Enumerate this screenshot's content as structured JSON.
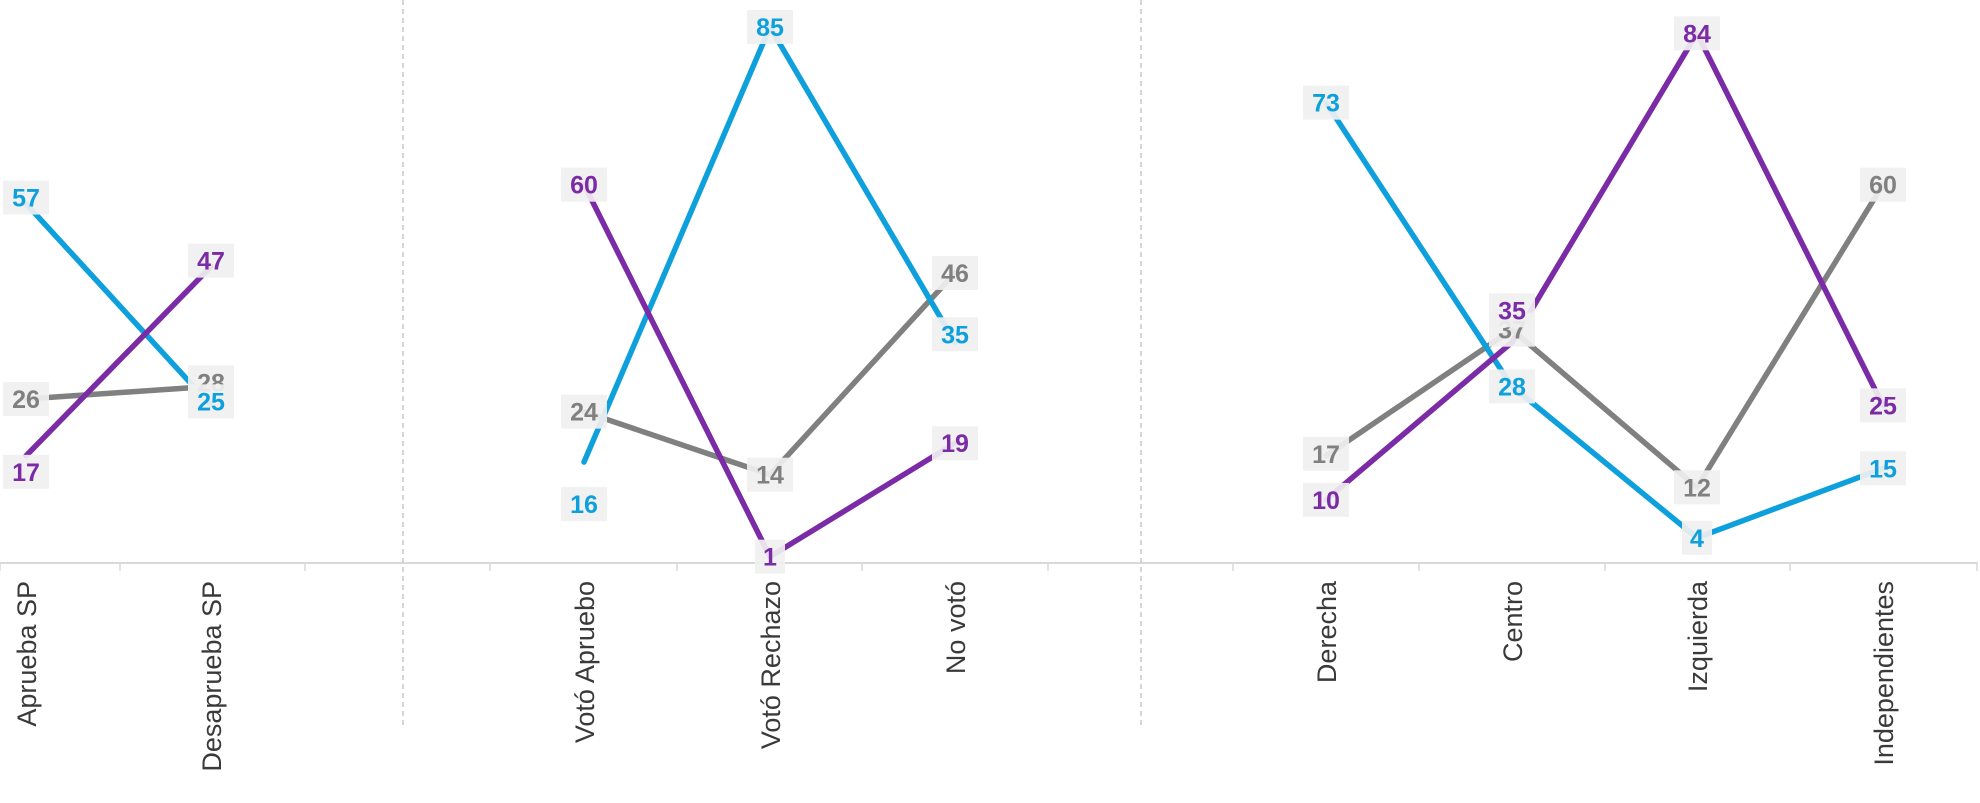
{
  "colors": {
    "blue": "#0ea0dc",
    "purple": "#7b2ba6",
    "gray": "#808080",
    "axis": "#d9d9d9",
    "label_bg": "#f0f0f0"
  },
  "chart_data": [
    {
      "type": "line",
      "panel": "left",
      "categories": [
        "Aprueba SP",
        "Desaprueba SP"
      ],
      "series": [
        {
          "color": "blue",
          "values": [
            57,
            25
          ]
        },
        {
          "color": "purple",
          "values": [
            17,
            47
          ]
        },
        {
          "color": "gray",
          "values": [
            26,
            28
          ]
        }
      ],
      "ylim": [
        0,
        85
      ],
      "grid": false
    },
    {
      "type": "line",
      "panel": "middle",
      "categories": [
        "Votó Apruebo",
        "Votó Rechazo",
        "No votó"
      ],
      "series": [
        {
          "color": "blue",
          "values": [
            16,
            85,
            35
          ]
        },
        {
          "color": "purple",
          "values": [
            60,
            1,
            19
          ]
        },
        {
          "color": "gray",
          "values": [
            24,
            14,
            46
          ]
        }
      ],
      "ylim": [
        0,
        85
      ],
      "grid": false
    },
    {
      "type": "line",
      "panel": "right",
      "categories": [
        "Derecha",
        "Centro",
        "Izquierda",
        "Independientes"
      ],
      "series": [
        {
          "color": "blue",
          "values": [
            73,
            28,
            4,
            15
          ]
        },
        {
          "color": "purple",
          "values": [
            10,
            35,
            84,
            25
          ]
        },
        {
          "color": "gray",
          "values": [
            17,
            37,
            12,
            60
          ]
        }
      ],
      "ylim": [
        0,
        85
      ],
      "grid": false
    }
  ]
}
